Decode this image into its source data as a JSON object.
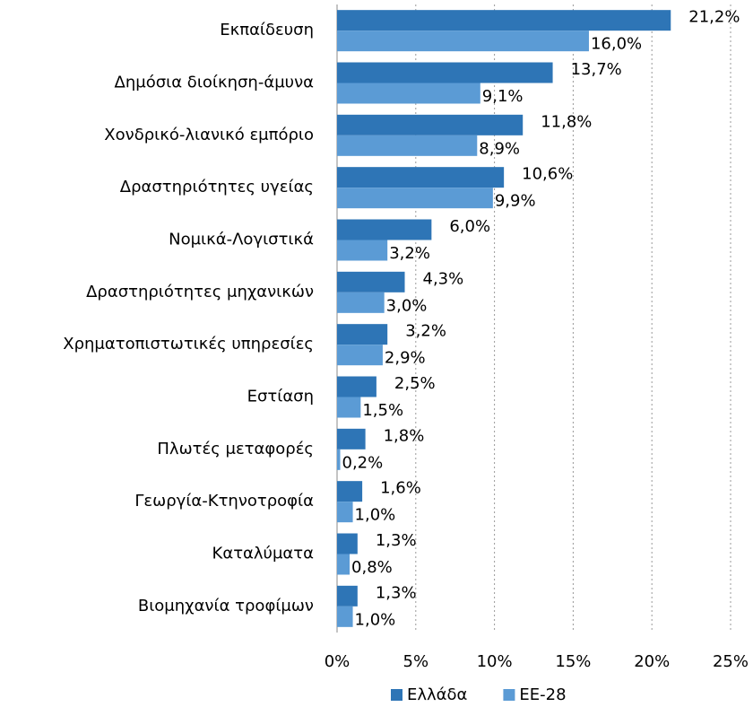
{
  "chart_data": {
    "type": "bar",
    "orientation": "horizontal",
    "categories": [
      "Εκπαίδευση",
      "Δημόσια διοίκηση-άμυνα",
      "Χονδρικό-λιανικό εμπόριο",
      "Δραστηριότητες υγείας",
      "Νομικά-Λογιστικά",
      "Δραστηριότητες μηχανικών",
      "Χρηματοπιστωτικές υπηρεσίες",
      "Εστίαση",
      "Πλωτές μεταφορές",
      "Γεωργία-Κτηνοτροφία",
      "Καταλύματα",
      "Βιομηχανία τροφίμων"
    ],
    "series": [
      {
        "name": "Ελλάδα",
        "color": "#2e75b6",
        "values": [
          21.2,
          13.7,
          11.8,
          10.6,
          6.0,
          4.3,
          3.2,
          2.5,
          1.8,
          1.6,
          1.3,
          1.3
        ],
        "value_labels": [
          "21,2%",
          "13,7%",
          "11,8%",
          "10,6%",
          "6,0%",
          "4,3%",
          "3,2%",
          "2,5%",
          "1,8%",
          "1,6%",
          "1,3%",
          "1,3%"
        ]
      },
      {
        "name": "ΕΕ-28",
        "color": "#5b9bd5",
        "values": [
          16.0,
          9.1,
          8.9,
          9.9,
          3.2,
          3.0,
          2.9,
          1.5,
          0.2,
          1.0,
          0.8,
          1.0
        ],
        "value_labels": [
          "16,0%",
          "9,1%",
          "8,9%",
          "9,9%",
          "3,2%",
          "3,0%",
          "2,9%",
          "1,5%",
          "0,2%",
          "1,0%",
          "0,8%",
          "1,0%"
        ]
      }
    ],
    "xlim": [
      0,
      25
    ],
    "xticks": [
      {
        "value": 0,
        "label": "0%"
      },
      {
        "value": 5,
        "label": "5%"
      },
      {
        "value": 10,
        "label": "10%"
      },
      {
        "value": 15,
        "label": "15%"
      },
      {
        "value": 20,
        "label": "20%"
      },
      {
        "value": 25,
        "label": "25%"
      }
    ],
    "grid": true,
    "legend": "bottom"
  }
}
